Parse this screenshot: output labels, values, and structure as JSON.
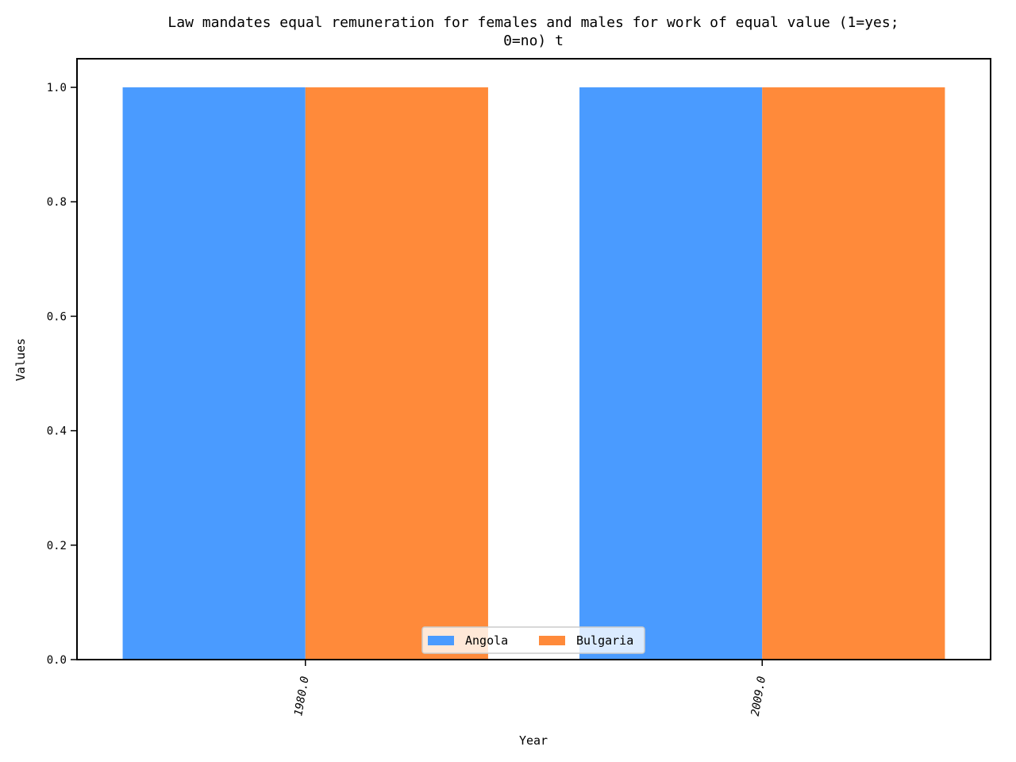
{
  "chart_data": {
    "type": "bar",
    "title_lines": [
      "Law mandates equal remuneration for females and males for work of equal value (1=yes;",
      "0=no) t"
    ],
    "xlabel": "Year",
    "ylabel": "Values",
    "categories": [
      "1980.0",
      "2009.0"
    ],
    "series": [
      {
        "name": "Angola",
        "values": [
          1,
          1
        ],
        "color": "#4a9bff"
      },
      {
        "name": "Bulgaria",
        "values": [
          1,
          1
        ],
        "color": "#ff8a3a"
      }
    ],
    "ylim": [
      0,
      1.05
    ],
    "yticks": [
      "0.0",
      "0.2",
      "0.4",
      "0.6",
      "0.8",
      "1.0"
    ],
    "grid": false,
    "legend_position": "lower center"
  }
}
